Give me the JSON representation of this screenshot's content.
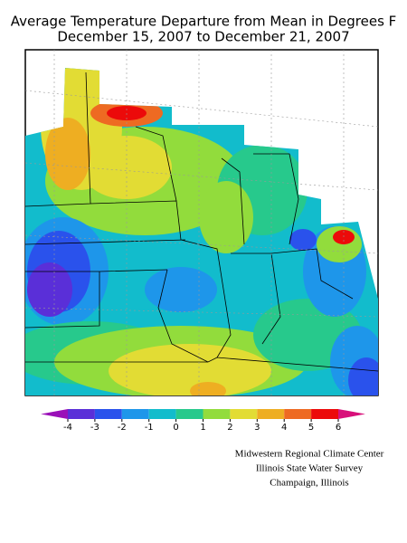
{
  "header": {
    "title_lines": [
      "Average Temperature Departure from Mean in Degrees F",
      "December 15, 2007 to December 21, 2007"
    ]
  },
  "legend": {
    "ticks": [
      -4,
      -3,
      -2,
      -1,
      0,
      1,
      2,
      3,
      4,
      5,
      6
    ],
    "colors": [
      "#5a2fd8",
      "#2a52ec",
      "#1e96ea",
      "#12bccc",
      "#27c98c",
      "#92dc3c",
      "#e2dc34",
      "#eeae22",
      "#ee6a22",
      "#ec0a0a"
    ],
    "under_color": "#9a10b8",
    "over_color": "#d8107a"
  },
  "credits": [
    "Midwestern Regional Climate Center",
    "Illinois State Water Survey",
    "Champaign, Illinois"
  ]
}
